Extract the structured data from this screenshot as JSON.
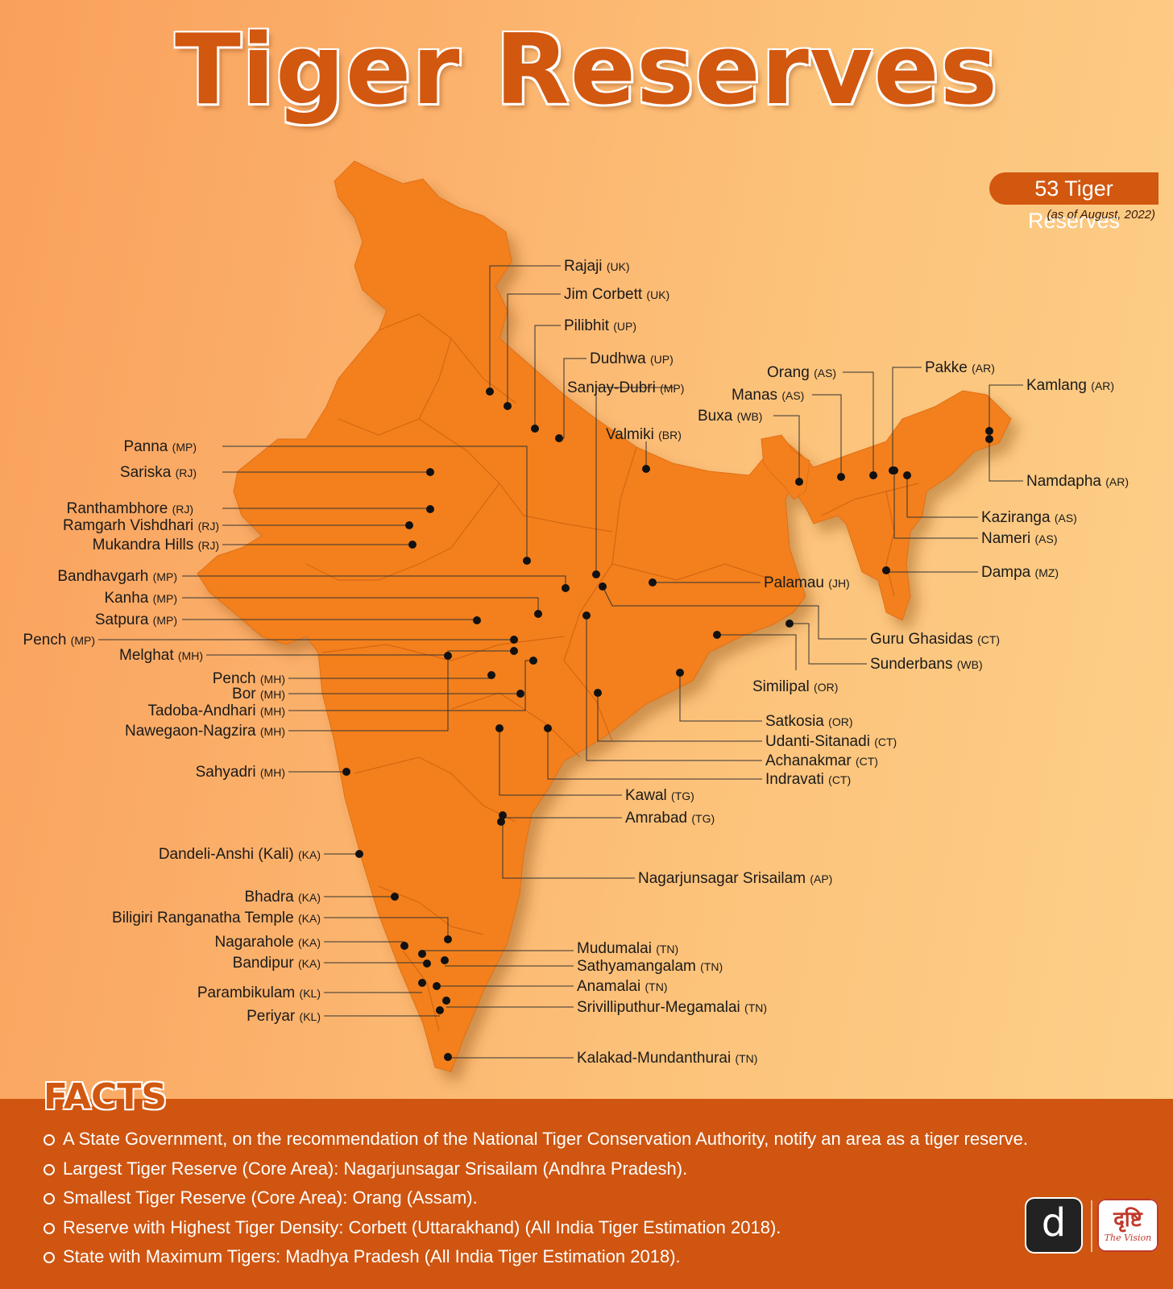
{
  "title": "Tiger Reserves",
  "badge": {
    "count_text": "53 Tiger Reserves",
    "as_of": "(as of August, 2022)"
  },
  "colors": {
    "map_fill": "#f3801f",
    "accent": "#d2570f",
    "facts_band": "#cf5510"
  },
  "reserves": [
    {
      "name": "Rajaji",
      "code": "(UK)"
    },
    {
      "name": "Jim Corbett",
      "code": "(UK)"
    },
    {
      "name": "Pilibhit",
      "code": "(UP)"
    },
    {
      "name": "Dudhwa",
      "code": "(UP)"
    },
    {
      "name": "Sanjay-Dubri",
      "code": "(MP)"
    },
    {
      "name": "Valmiki",
      "code": "(BR)"
    },
    {
      "name": "Orang",
      "code": "(AS)"
    },
    {
      "name": "Manas",
      "code": "(AS)"
    },
    {
      "name": "Buxa",
      "code": "(WB)"
    },
    {
      "name": "Pakke",
      "code": "(AR)"
    },
    {
      "name": "Kamlang",
      "code": "(AR)"
    },
    {
      "name": "Namdapha",
      "code": "(AR)"
    },
    {
      "name": "Kaziranga",
      "code": "(AS)"
    },
    {
      "name": "Nameri",
      "code": "(AS)"
    },
    {
      "name": "Dampa",
      "code": "(MZ)"
    },
    {
      "name": "Palamau",
      "code": "(JH)"
    },
    {
      "name": "Guru Ghasidas",
      "code": "(CT)"
    },
    {
      "name": "Sunderbans",
      "code": "(WB)"
    },
    {
      "name": "Similipal",
      "code": "(OR)"
    },
    {
      "name": "Satkosia",
      "code": "(OR)"
    },
    {
      "name": "Udanti-Sitanadi",
      "code": "(CT)"
    },
    {
      "name": "Achanakmar",
      "code": "(CT)"
    },
    {
      "name": "Indravati",
      "code": "(CT)"
    },
    {
      "name": "Kawal",
      "code": "(TG)"
    },
    {
      "name": "Amrabad",
      "code": "(TG)"
    },
    {
      "name": "Nagarjunsagar Srisailam",
      "code": "(AP)"
    },
    {
      "name": "Panna",
      "code": "(MP)"
    },
    {
      "name": "Sariska",
      "code": "(RJ)"
    },
    {
      "name": "Ranthambhore",
      "code": "(RJ)"
    },
    {
      "name": "Ramgarh Vishdhari",
      "code": "(RJ)"
    },
    {
      "name": "Mukandra Hills",
      "code": "(RJ)"
    },
    {
      "name": "Bandhavgarh",
      "code": "(MP)"
    },
    {
      "name": "Kanha",
      "code": "(MP)"
    },
    {
      "name": "Satpura",
      "code": "(MP)"
    },
    {
      "name": "Pench",
      "code": "(MP)"
    },
    {
      "name": "Melghat",
      "code": "(MH)"
    },
    {
      "name": "Pench",
      "code": "(MH)"
    },
    {
      "name": "Bor",
      "code": "(MH)"
    },
    {
      "name": "Tadoba-Andhari",
      "code": "(MH)"
    },
    {
      "name": "Nawegaon-Nagzira",
      "code": "(MH)"
    },
    {
      "name": "Sahyadri",
      "code": "(MH)"
    },
    {
      "name": "Dandeli-Anshi (Kali)",
      "code": "(KA)"
    },
    {
      "name": "Bhadra",
      "code": "(KA)"
    },
    {
      "name": "Biligiri Ranganatha Temple",
      "code": "(KA)"
    },
    {
      "name": "Nagarahole",
      "code": "(KA)"
    },
    {
      "name": "Bandipur",
      "code": "(KA)"
    },
    {
      "name": "Parambikulam",
      "code": "(KL)"
    },
    {
      "name": "Periyar",
      "code": "(KL)"
    },
    {
      "name": "Mudumalai",
      "code": "(TN)"
    },
    {
      "name": "Sathyamangalam",
      "code": "(TN)"
    },
    {
      "name": "Anamalai",
      "code": "(TN)"
    },
    {
      "name": "Srivilliputhur-Megamalai",
      "code": "(TN)"
    },
    {
      "name": "Kalakad-Mundanthurai",
      "code": "(TN)"
    }
  ],
  "facts": {
    "heading": "FACTS",
    "items": [
      "A State Government, on the recommendation of the National Tiger Conservation Authority, notify an area as a tiger reserve.",
      "Largest Tiger Reserve (Core Area): Nagarjunsagar Srisailam (Andhra Pradesh).",
      "Smallest Tiger Reserve (Core Area): Orang (Assam).",
      "Reserve with Highest Tiger Density: Corbett (Uttarakhand) (All India Tiger Estimation 2018).",
      "State with Maximum Tigers: Madhya Pradesh (All India Tiger Estimation 2018)."
    ]
  },
  "logos": {
    "left_glyph": "d",
    "right_word": "दृष्टि",
    "right_sub": "The Vision"
  }
}
